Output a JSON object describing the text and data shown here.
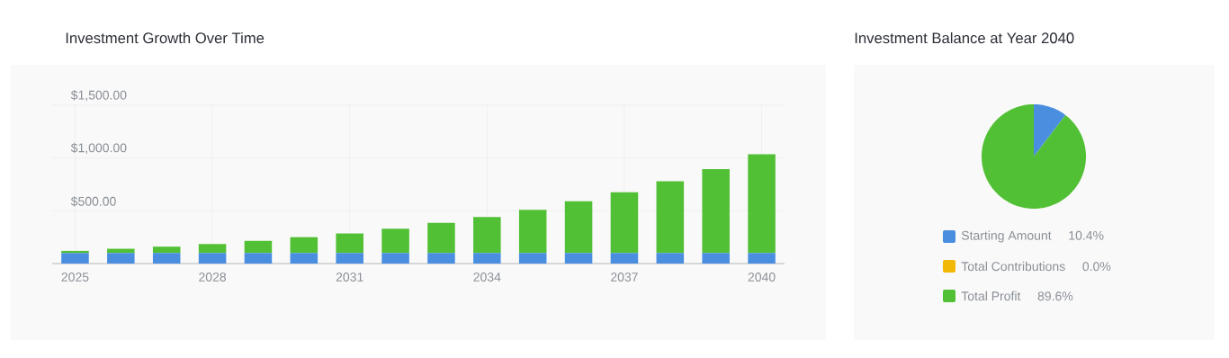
{
  "chart_data": [
    {
      "type": "bar",
      "title": "Investment Growth Over Time",
      "categories": [
        "2025",
        null,
        null,
        "2028",
        null,
        null,
        "2031",
        null,
        null,
        "2034",
        null,
        null,
        "2037",
        null,
        null,
        "2040"
      ],
      "series": [
        {
          "color": "#4a8ee0",
          "values": [
            100,
            100,
            100,
            100,
            100,
            100,
            100,
            100,
            100,
            100,
            100,
            100,
            100,
            100,
            100,
            100
          ]
        },
        {
          "color": "#52c034",
          "values": [
            20,
            40,
            60,
            85,
            115,
            150,
            185,
            230,
            285,
            340,
            410,
            490,
            575,
            680,
            795,
            935
          ]
        }
      ],
      "stacked": true,
      "ylim": [
        0,
        1500
      ],
      "yticks": [
        {
          "value": 0,
          "label": null
        },
        {
          "value": 500,
          "label": "$500.00"
        },
        {
          "value": 1000,
          "label": "$1,000.00"
        },
        {
          "value": 1500,
          "label": "$1,500.00"
        }
      ],
      "grid": true
    },
    {
      "type": "pie",
      "title": "Investment Balance at Year 2040",
      "categories": [
        "Starting Amount",
        "Total Contributions",
        "Total Profit"
      ],
      "values": [
        10.4,
        0.0,
        89.6
      ],
      "colors": [
        "#4a8ee0",
        "#f2b807",
        "#52c034"
      ],
      "value_labels": [
        "10.4%",
        "0.0%",
        "89.6%"
      ],
      "legend": "bottom"
    }
  ]
}
